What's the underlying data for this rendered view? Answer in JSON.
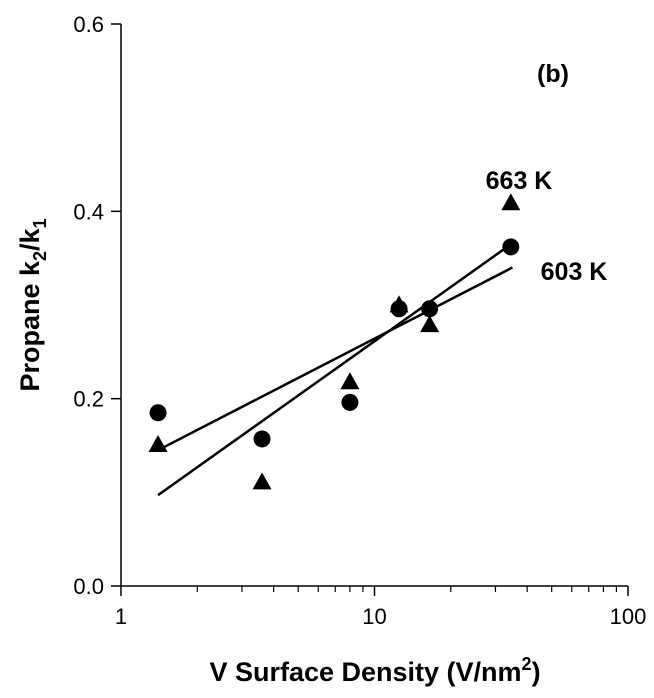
{
  "chart_data": {
    "type": "scatter",
    "title": "",
    "panel_label": "(b)",
    "xlabel": {
      "main": "V Surface Density (V/nm",
      "sup": "2",
      "tail": ")"
    },
    "ylabel": {
      "main": "Propane k",
      "sub1": "2",
      "mid": "/k",
      "sub2": "1"
    },
    "x_scale": "log",
    "xlim": [
      1,
      100
    ],
    "ylim": [
      0.0,
      0.6
    ],
    "x_ticks": [
      1,
      10,
      100
    ],
    "x_tick_labels": [
      "1",
      "10",
      "100"
    ],
    "y_ticks": [
      0.0,
      0.2,
      0.4,
      0.6
    ],
    "y_tick_labels": [
      "0.0",
      "0.2",
      "0.4",
      "0.6"
    ],
    "grid": false,
    "legend": "none",
    "series": [
      {
        "name": "603 K",
        "marker": "circle",
        "x": [
          1.4,
          3.6,
          8.0,
          12.5,
          16.5,
          34.5
        ],
        "y": [
          0.185,
          0.157,
          0.196,
          0.296,
          0.296,
          0.362
        ],
        "fit": {
          "x": [
            1.4,
            35.0
          ],
          "y": [
            0.145,
            0.34
          ]
        }
      },
      {
        "name": "663 K",
        "marker": "triangle",
        "x": [
          1.4,
          3.6,
          8.0,
          12.5,
          16.5,
          34.5
        ],
        "y": [
          0.15,
          0.11,
          0.217,
          0.299,
          0.278,
          0.408
        ],
        "fit": {
          "x": [
            1.4,
            35.0
          ],
          "y": [
            0.097,
            0.366
          ]
        }
      }
    ],
    "annotations": [
      "663 K",
      "603 K"
    ],
    "colors": {
      "ink": "#000000",
      "background": "#ffffff"
    }
  }
}
